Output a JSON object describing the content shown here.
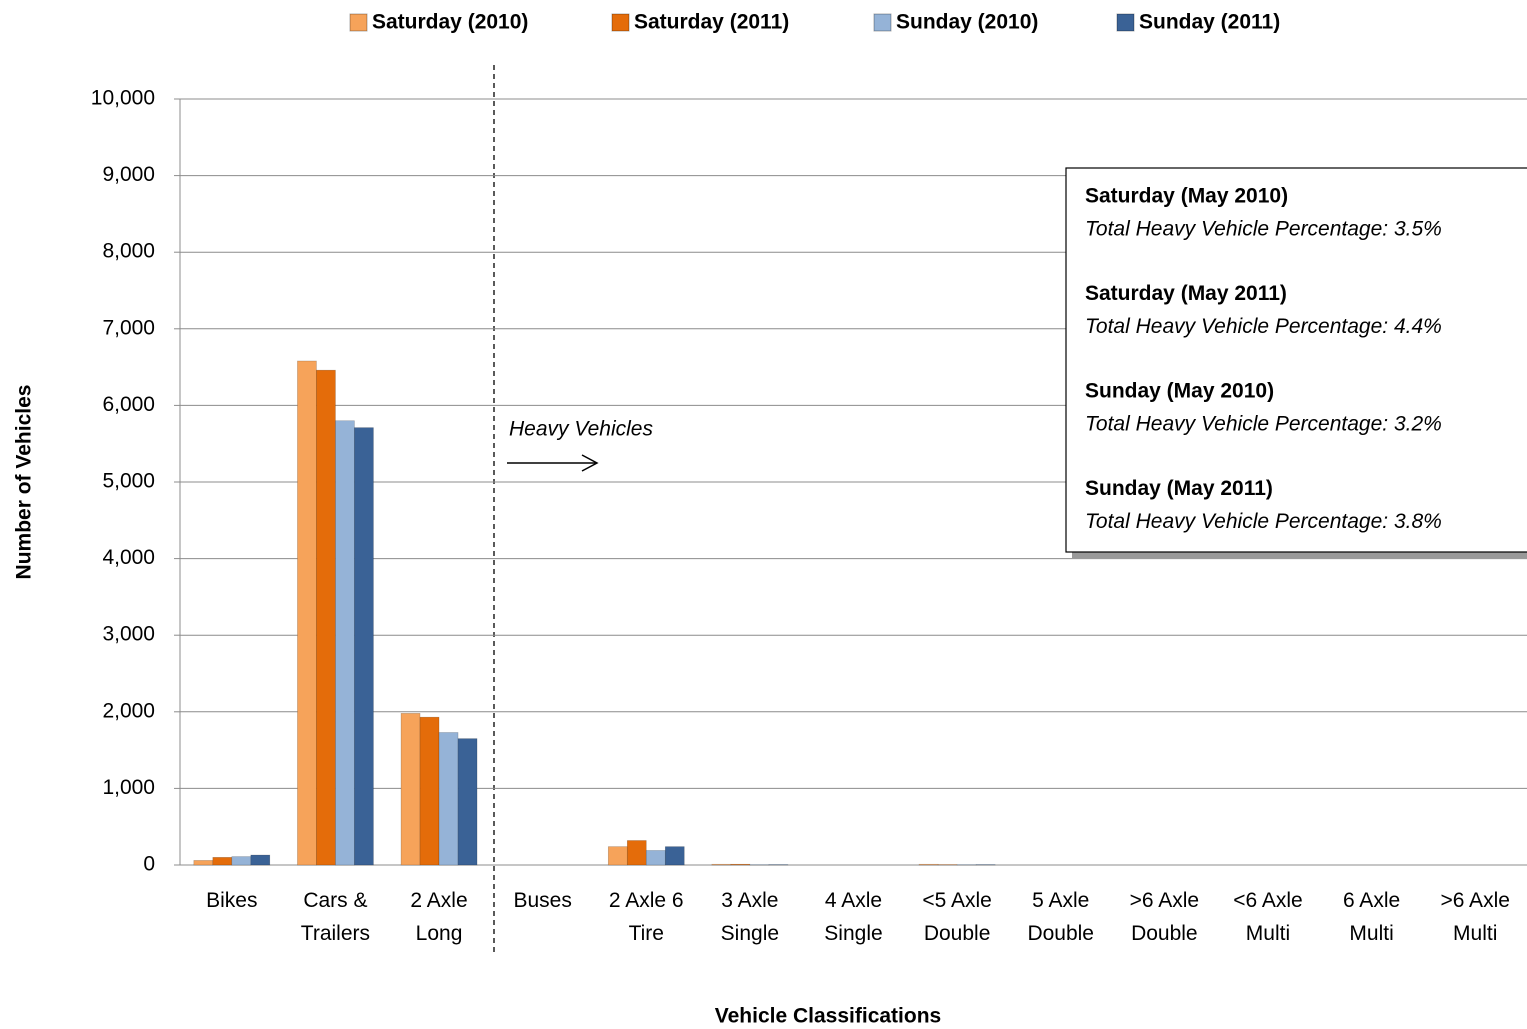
{
  "chart_data": {
    "type": "bar",
    "x_label": "Vehicle Classifications",
    "y_label": "Number of Vehicles",
    "categories": [
      "Bikes",
      "Cars & Trailers",
      "2 Axle Long",
      "Buses",
      "2 Axle 6 Tire",
      "3 Axle Single",
      "4 Axle Single",
      "<5 Axle Double",
      "5 Axle Double",
      ">6 Axle Double",
      "<6 Axle Multi",
      "6 Axle Multi",
      ">6 Axle Multi"
    ],
    "series": [
      {
        "name": "Saturday (2010)",
        "color": "#f6a35a",
        "values": [
          60,
          6580,
          1980,
          0,
          240,
          10,
          0,
          10,
          0,
          0,
          0,
          0,
          0
        ]
      },
      {
        "name": "Saturday (2011)",
        "color": "#e46c0a",
        "values": [
          100,
          6460,
          1930,
          0,
          320,
          10,
          0,
          5,
          0,
          0,
          0,
          0,
          0
        ]
      },
      {
        "name": "Sunday (2010)",
        "color": "#95b3d7",
        "values": [
          110,
          5800,
          1730,
          0,
          190,
          5,
          0,
          5,
          0,
          0,
          0,
          0,
          0
        ]
      },
      {
        "name": "Sunday (2011)",
        "color": "#3a6296",
        "values": [
          130,
          5710,
          1650,
          0,
          240,
          5,
          0,
          5,
          0,
          0,
          0,
          0,
          0
        ]
      }
    ],
    "ylim": [
      0,
      10000
    ],
    "yticks": [
      0,
      {
        "value": 1000,
        "label": "1,000"
      },
      {
        "value": 2000,
        "label": "2,000"
      },
      {
        "value": 3000,
        "label": "3,000"
      },
      {
        "value": 4000,
        "label": "4,000"
      },
      {
        "value": 5000,
        "label": "5,000"
      },
      {
        "value": 6000,
        "label": "6,000"
      },
      {
        "value": 7000,
        "label": "7,000"
      },
      {
        "value": 8000,
        "label": "8,000"
      },
      {
        "value": 9000,
        "label": "9,000"
      },
      {
        "value": 10000,
        "label": "10,000"
      }
    ],
    "grid": true,
    "legend": "top",
    "annotation": "Heavy Vehicles",
    "info_box": [
      {
        "title": "Saturday (May 2010)",
        "text": "Total Heavy Vehicle Percentage: 3.5%",
        "color": "#f6a35a"
      },
      {
        "title": "Saturday (May 2011)",
        "text": "Total Heavy Vehicle Percentage: 4.4%",
        "color": "#e46c0a"
      },
      {
        "title": "Sunday (May 2010)",
        "text": "Total Heavy Vehicle Percentage: 3.2%",
        "color": "#95b3d7"
      },
      {
        "title": "Sunday (May 2011)",
        "text": "Total Heavy Vehicle Percentage: 3.8%",
        "color": "#3a6296"
      }
    ]
  }
}
